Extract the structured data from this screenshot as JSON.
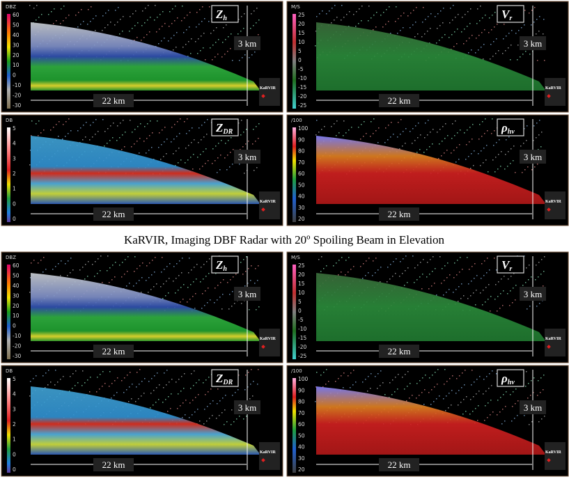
{
  "caption": "KaRVIR, Imaging DBF Radar with 20º Spoiling Beam in Elevation",
  "panels": [
    {
      "unit": "DBZ",
      "ticks": [
        "60",
        "50",
        "40",
        "30",
        "20",
        "10",
        "0",
        "-10",
        "-20",
        "-30"
      ],
      "label": "Z",
      "label_sub": "h",
      "height": "3 km",
      "width": "22 km",
      "radar": "KaRVIR"
    },
    {
      "unit": "M/S",
      "ticks": [
        "25",
        "20",
        "15",
        "10",
        "5",
        "0",
        "-5",
        "-10",
        "-15",
        "-20",
        "-25"
      ],
      "label": "V",
      "label_sub": "r",
      "height": "3 km",
      "width": "22 km",
      "radar": "KaRVIR"
    },
    {
      "unit": "DB",
      "ticks": [
        "5",
        "4",
        "3",
        "2",
        "1",
        "0",
        "0"
      ],
      "label": "Z",
      "label_sub": "DR",
      "height": "3 km",
      "width": "22 km",
      "radar": "KaRVIR"
    },
    {
      "unit": "/100",
      "ticks": [
        "100",
        "90",
        "80",
        "70",
        "60",
        "50",
        "40",
        "30",
        "20"
      ],
      "label": "ρ",
      "label_sub": "hv",
      "height": "3 km",
      "width": "22 km",
      "radar": "KaRVIR"
    },
    {
      "unit": "DBZ",
      "ticks": [
        "60",
        "50",
        "40",
        "30",
        "20",
        "10",
        "0",
        "-10",
        "-20",
        "-30"
      ],
      "label": "Z",
      "label_sub": "h",
      "height": "3 km",
      "width": "22 km",
      "radar": "KaRVIR"
    },
    {
      "unit": "M/S",
      "ticks": [
        "25",
        "20",
        "15",
        "10",
        "5",
        "0",
        "-5",
        "-10",
        "-15",
        "-20",
        "-25"
      ],
      "label": "V",
      "label_sub": "r",
      "height": "3 km",
      "width": "22 km",
      "radar": "KaRVIR"
    },
    {
      "unit": "DB",
      "ticks": [
        "5",
        "4",
        "3",
        "2",
        "1",
        "0",
        "0"
      ],
      "label": "Z",
      "label_sub": "DR",
      "height": "3 km",
      "width": "22 km",
      "radar": "KaRVIR"
    },
    {
      "unit": "/100",
      "ticks": [
        "100",
        "90",
        "80",
        "70",
        "60",
        "50",
        "40",
        "30",
        "20"
      ],
      "label": "ρ",
      "label_sub": "hv",
      "height": "3 km",
      "width": "22 km",
      "radar": "KaRVIR"
    }
  ]
}
